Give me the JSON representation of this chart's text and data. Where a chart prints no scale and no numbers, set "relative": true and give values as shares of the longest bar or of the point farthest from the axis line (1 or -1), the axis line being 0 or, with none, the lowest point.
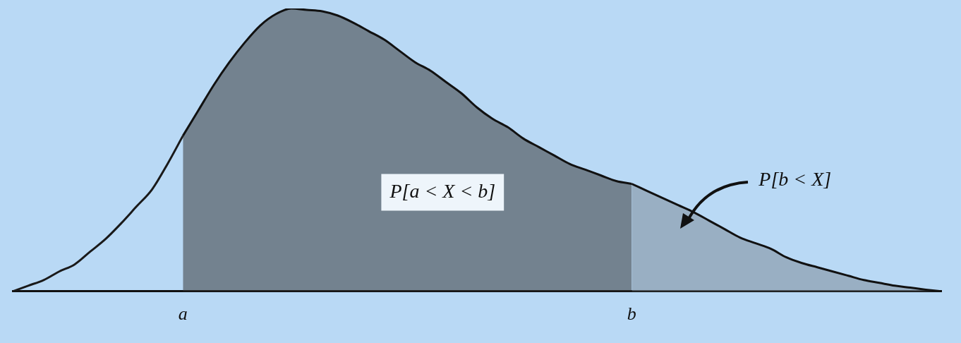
{
  "chart_data": {
    "type": "area",
    "relative": true,
    "grid": false,
    "legend": false,
    "categories": [
      null,
      null,
      null,
      null,
      null,
      null,
      null,
      null,
      null,
      null,
      null,
      "a",
      null,
      null,
      null,
      null,
      null,
      null,
      null,
      null,
      null,
      null,
      null,
      null,
      null,
      null,
      null,
      null,
      null,
      null,
      null,
      null,
      null,
      null,
      null,
      null,
      null,
      null,
      null,
      null,
      "b",
      null,
      null,
      null,
      null,
      null,
      null,
      null,
      null,
      null,
      null,
      null,
      null,
      null,
      null,
      null,
      null,
      null,
      null,
      null,
      null
    ],
    "series": [
      {
        "type": "line",
        "color": "#1a1a1a",
        "values": [
          0,
          0.02,
          0.04,
          0.07,
          0.095,
          0.14,
          0.185,
          0.24,
          0.3,
          0.36,
          0.45,
          0.55,
          null,
          null,
          null,
          null,
          null,
          null,
          null,
          null,
          null,
          null,
          null,
          null,
          null,
          null,
          null,
          null,
          null,
          null,
          null,
          null,
          null,
          null,
          null,
          null,
          null,
          null,
          null,
          null,
          null,
          null,
          null,
          null,
          null,
          null,
          null,
          null,
          null,
          null,
          null,
          null,
          null,
          null,
          null,
          null,
          null,
          null,
          null,
          null,
          null
        ]
      },
      {
        "type": "area",
        "color": "#3a3a3a",
        "values": [
          null,
          null,
          null,
          null,
          null,
          null,
          null,
          null,
          null,
          null,
          null,
          0.55,
          0.64,
          0.73,
          0.81,
          0.88,
          0.94,
          0.98,
          1,
          0.995,
          0.99,
          0.975,
          0.95,
          0.92,
          0.89,
          0.85,
          0.81,
          0.78,
          0.74,
          0.7,
          0.65,
          0.61,
          0.58,
          0.54,
          0.51,
          0.48,
          0.45,
          0.43,
          0.41,
          0.39,
          0.38,
          null,
          null,
          null,
          null,
          null,
          null,
          null,
          null,
          null,
          null,
          null,
          null,
          null,
          null,
          null,
          null,
          null,
          null,
          null,
          null
        ]
      },
      {
        "type": "area",
        "color": "#7f8c99",
        "values": [
          null,
          null,
          null,
          null,
          null,
          null,
          null,
          null,
          null,
          null,
          null,
          null,
          null,
          null,
          null,
          null,
          null,
          null,
          null,
          null,
          null,
          null,
          null,
          null,
          null,
          null,
          null,
          null,
          null,
          null,
          null,
          null,
          null,
          null,
          null,
          null,
          null,
          null,
          null,
          null,
          0.38,
          0.355,
          0.33,
          0.305,
          0.28,
          0.25,
          0.22,
          0.19,
          0.17,
          0.15,
          0.12,
          0.1,
          0.085,
          0.07,
          0.055,
          0.04,
          0.03,
          0.02,
          0.013,
          0.006,
          0
        ]
      }
    ],
    "annotations": [
      "P[a < X < b]",
      "P[b < X]"
    ]
  }
}
